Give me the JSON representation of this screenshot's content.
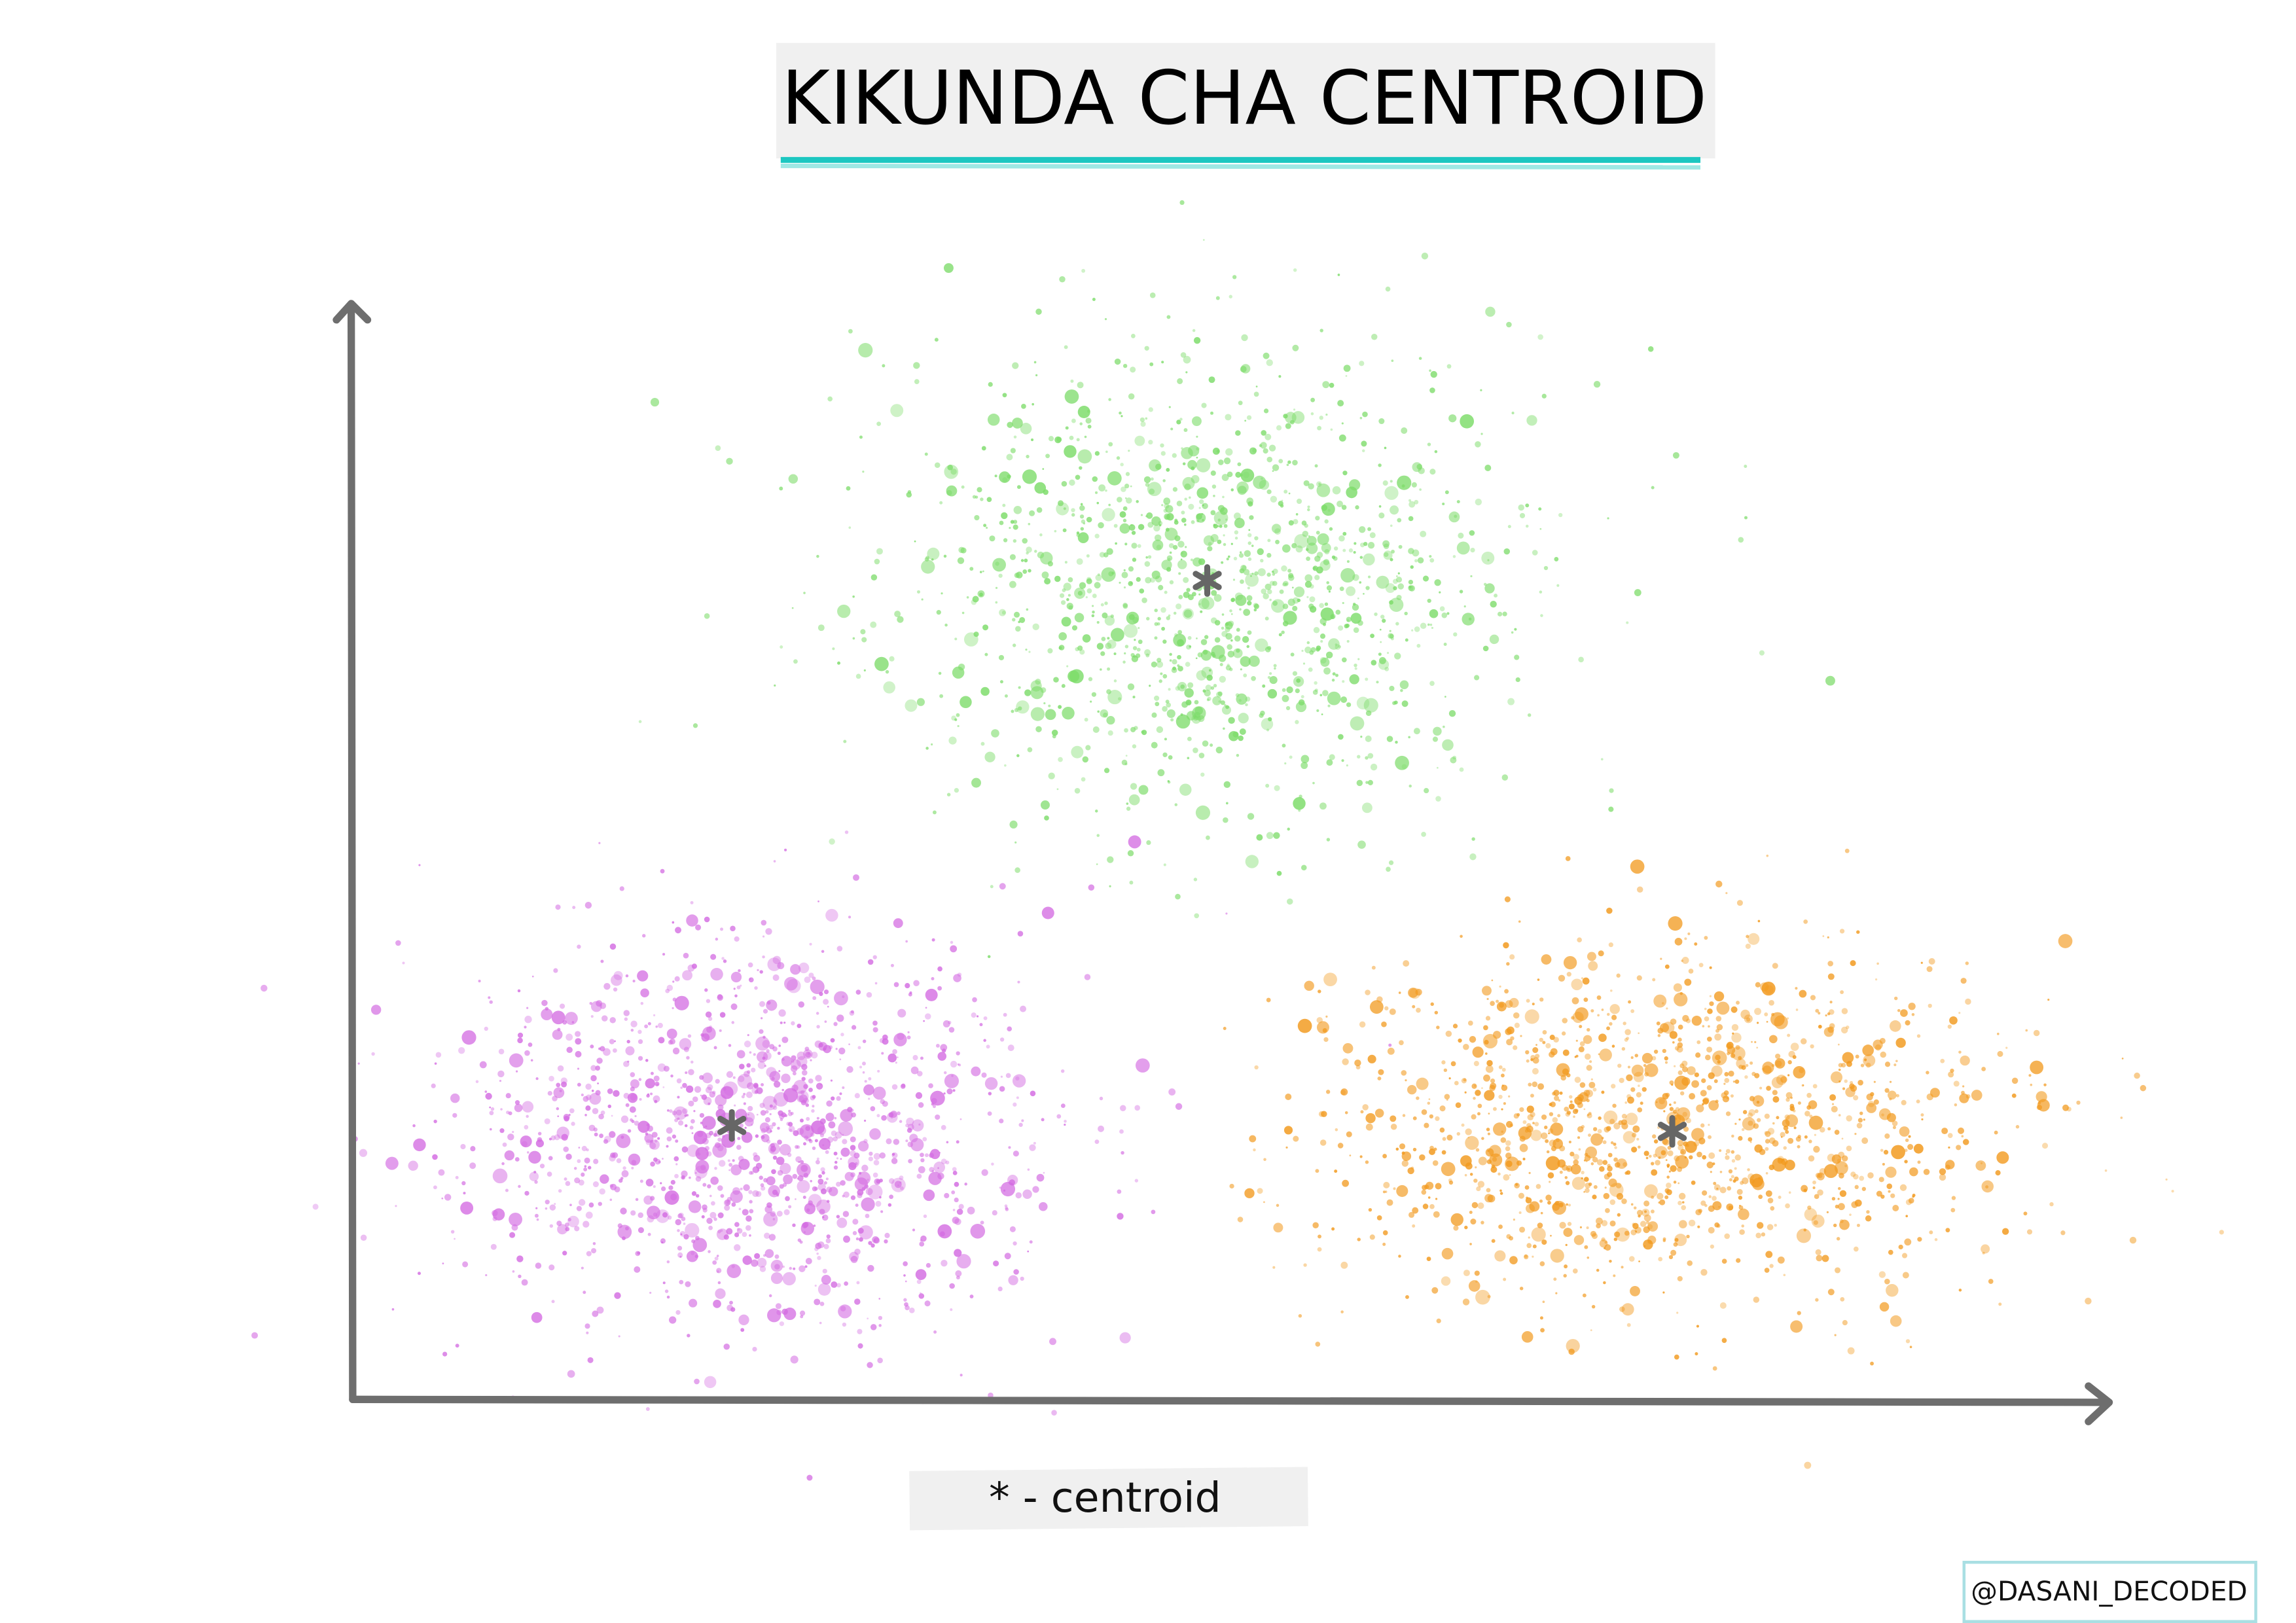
{
  "title": "KIKUNDA CHA CENTROID",
  "legend": "* - centroid",
  "credit": "@DASANI_DECODED"
}
